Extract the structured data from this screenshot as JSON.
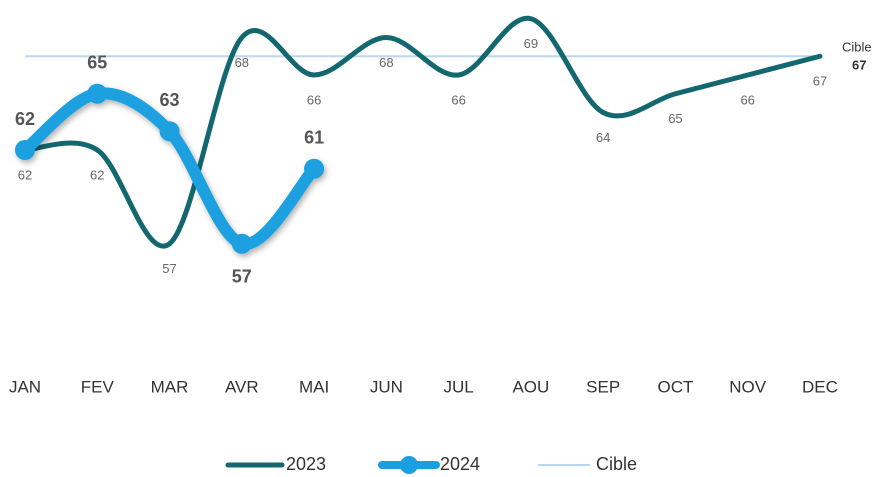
{
  "chart_data": {
    "type": "line",
    "categories": [
      "JAN",
      "FEV",
      "MAR",
      "AVR",
      "MAI",
      "JUN",
      "JUL",
      "AOU",
      "SEP",
      "OCT",
      "NOV",
      "DEC"
    ],
    "series": [
      {
        "name": "2023",
        "color": "#13676e",
        "values": [
          62,
          62,
          57,
          68,
          66,
          68,
          66,
          69,
          64,
          65,
          66,
          67
        ]
      },
      {
        "name": "2024",
        "color": "#1aa0e0",
        "values": [
          62,
          65,
          63,
          57,
          61,
          null,
          null,
          null,
          null,
          null,
          null,
          null
        ]
      }
    ],
    "target": {
      "name": "Cible",
      "value": 67,
      "color": "#b8d8ef"
    },
    "ylim": [
      56,
      70
    ],
    "legend": "bottom"
  }
}
